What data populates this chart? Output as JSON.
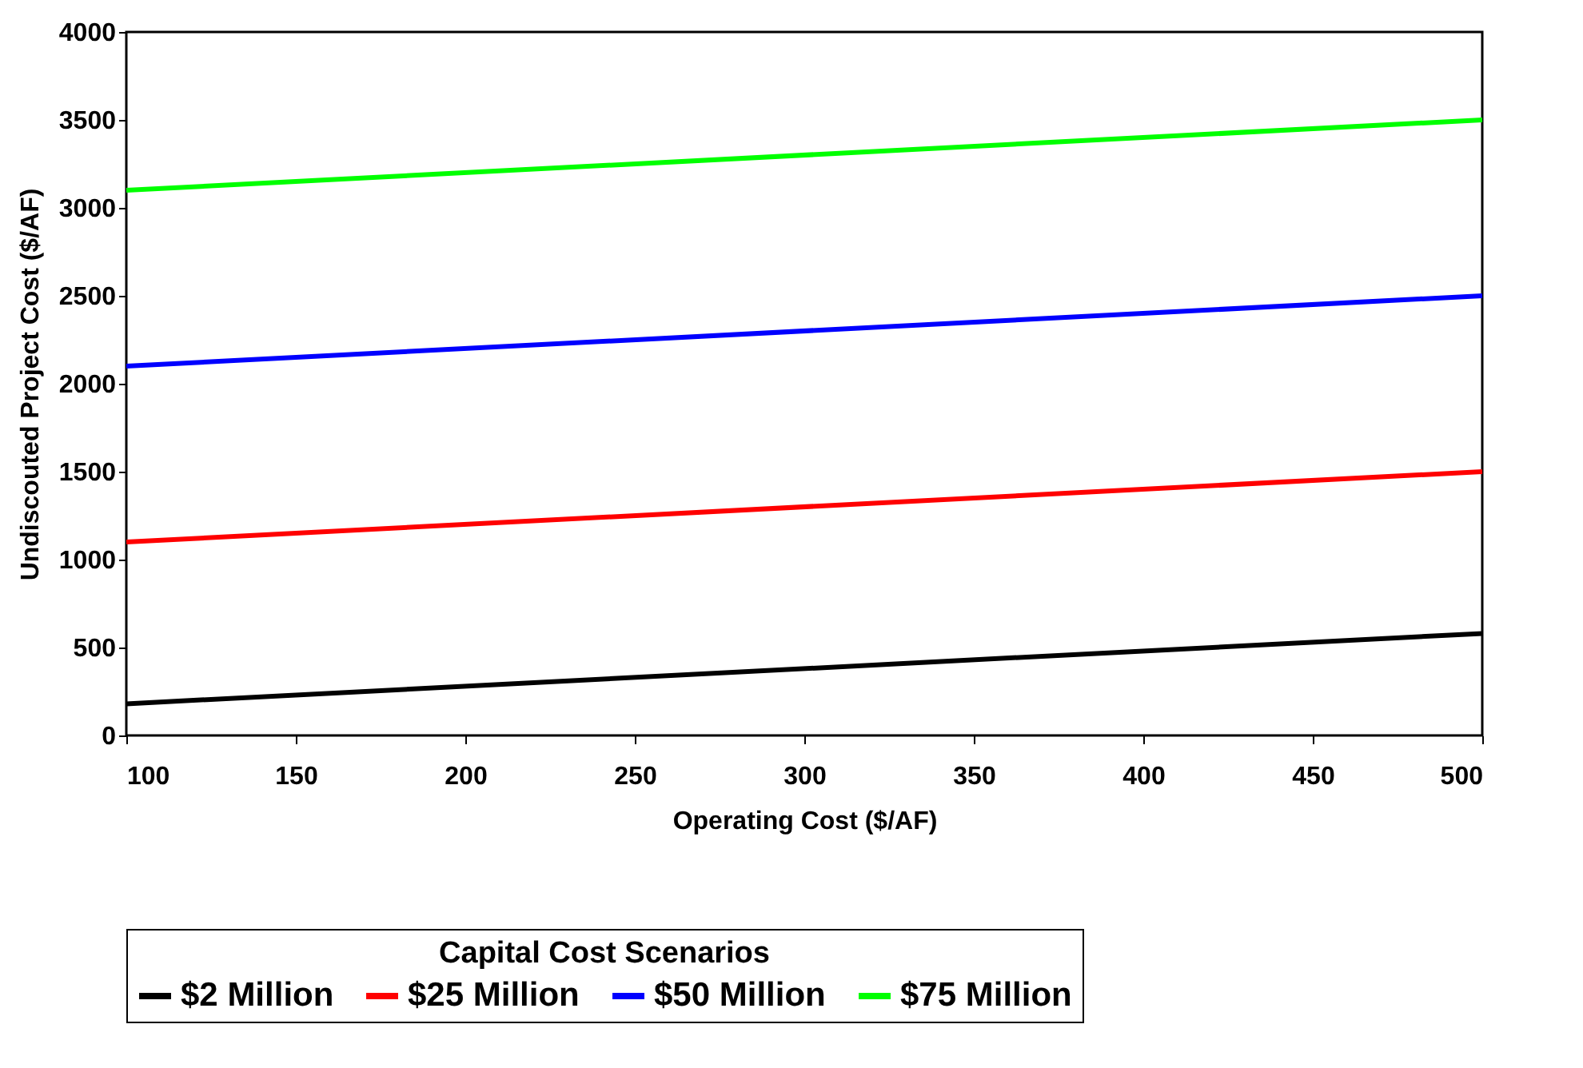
{
  "chart_data": {
    "type": "line",
    "xlabel": "Operating Cost ($/AF)",
    "ylabel": "Undiscouted Project Cost ($/AF)",
    "legend_title": "Capital Cost Scenarios",
    "x": [
      100,
      500
    ],
    "series": [
      {
        "name": "$2 Million",
        "color": "#000000",
        "values": [
          180,
          580
        ]
      },
      {
        "name": "$25 Million",
        "color": "#ff0000",
        "values": [
          1100,
          1500
        ]
      },
      {
        "name": "$50 Million",
        "color": "#0000ff",
        "values": [
          2100,
          2500
        ]
      },
      {
        "name": "$75 Million",
        "color": "#00ff00",
        "values": [
          3100,
          3500
        ]
      }
    ],
    "xlim": [
      100,
      500
    ],
    "xticks": [
      100,
      150,
      200,
      250,
      300,
      350,
      400,
      450,
      500
    ],
    "ylim": [
      0,
      4000
    ],
    "yticks": [
      0,
      500,
      1000,
      1500,
      2000,
      2500,
      3000,
      3500,
      4000
    ],
    "grid": false,
    "legend": "bottom",
    "marker": "none",
    "line_style": "solid"
  }
}
